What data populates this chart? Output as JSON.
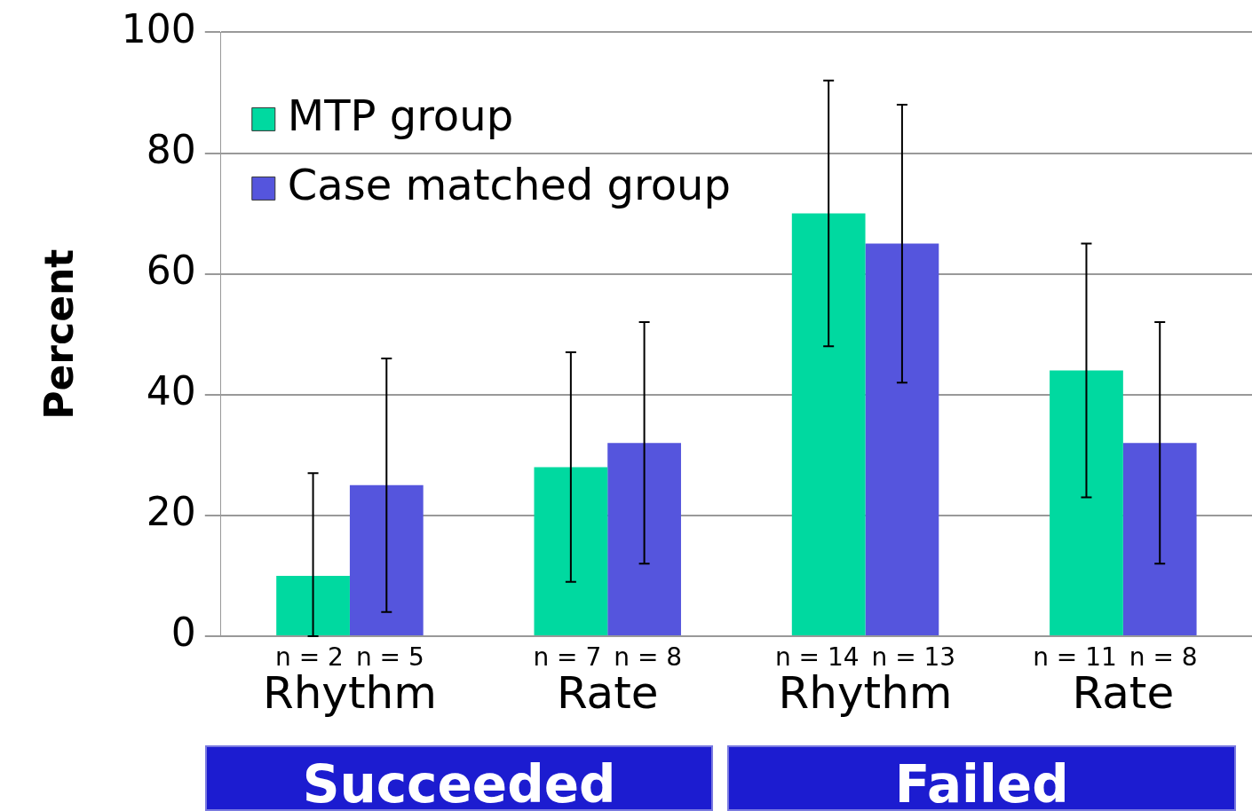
{
  "chart_data": {
    "type": "bar",
    "ylabel": "Percent",
    "categories": [
      "Rhythm",
      "Rate",
      "Rhythm",
      "Rate"
    ],
    "series": [
      {
        "name": "MTP group",
        "color": "#00d9a0",
        "values": [
          10,
          28,
          70,
          44
        ],
        "errors": [
          [
            0,
            27
          ],
          [
            9,
            47
          ],
          [
            48,
            92
          ],
          [
            23,
            65
          ]
        ]
      },
      {
        "name": "Case matched group",
        "color": "#5555dd",
        "values": [
          25,
          32,
          65,
          32
        ],
        "errors": [
          [
            4,
            46
          ],
          [
            12,
            52
          ],
          [
            42,
            88
          ],
          [
            12,
            52
          ]
        ]
      }
    ],
    "ylim": [
      0,
      100
    ],
    "yticks": [
      0,
      20,
      40,
      60,
      80,
      100
    ],
    "grid": "y",
    "legend": "top left",
    "annotations": [
      "n = 2",
      "n = 5",
      "n = 7",
      "n = 8",
      "n = 14",
      "n = 13",
      "n = 11",
      "n = 8",
      "Succeeded",
      "Failed"
    ]
  }
}
